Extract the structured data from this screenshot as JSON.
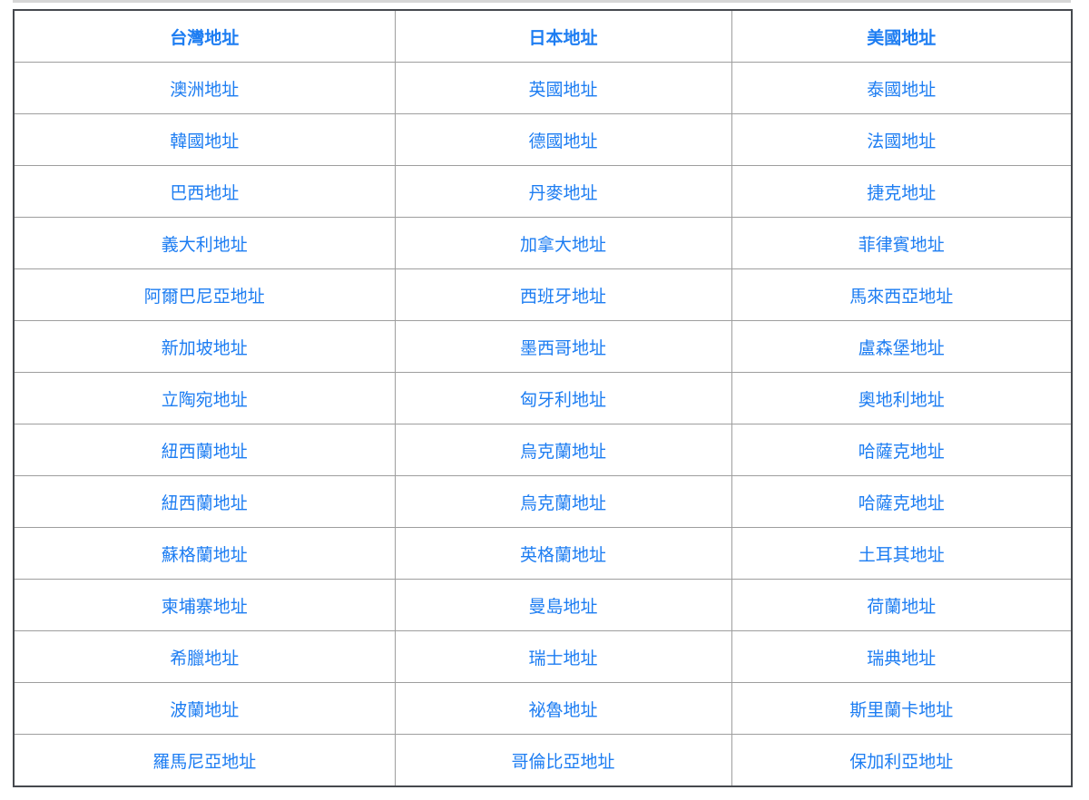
{
  "page": {
    "background_color": "#ffffff",
    "top_strip_color": "#d6d6d6"
  },
  "table": {
    "link_color": "#1d7df2",
    "inner_border_color": "#9e9e9e",
    "outer_border_color": "#46494e",
    "header": [
      "台灣地址",
      "日本地址",
      "美國地址"
    ],
    "rows": [
      [
        "澳洲地址",
        "英國地址",
        "泰國地址"
      ],
      [
        "韓國地址",
        "德國地址",
        "法國地址"
      ],
      [
        "巴西地址",
        "丹麥地址",
        "捷克地址"
      ],
      [
        "義大利地址",
        "加拿大地址",
        "菲律賓地址"
      ],
      [
        "阿爾巴尼亞地址",
        "西班牙地址",
        "馬來西亞地址"
      ],
      [
        "新加坡地址",
        "墨西哥地址",
        "盧森堡地址"
      ],
      [
        "立陶宛地址",
        "匈牙利地址",
        "奧地利地址"
      ],
      [
        "紐西蘭地址",
        "烏克蘭地址",
        "哈薩克地址"
      ],
      [
        "紐西蘭地址",
        "烏克蘭地址",
        "哈薩克地址"
      ],
      [
        "蘇格蘭地址",
        "英格蘭地址",
        "土耳其地址"
      ],
      [
        "柬埔寨地址",
        "曼島地址",
        "荷蘭地址"
      ],
      [
        "希臘地址",
        "瑞士地址",
        "瑞典地址"
      ],
      [
        "波蘭地址",
        "祕魯地址",
        "斯里蘭卡地址"
      ],
      [
        "羅馬尼亞地址",
        "哥倫比亞地址",
        "保加利亞地址"
      ]
    ]
  }
}
